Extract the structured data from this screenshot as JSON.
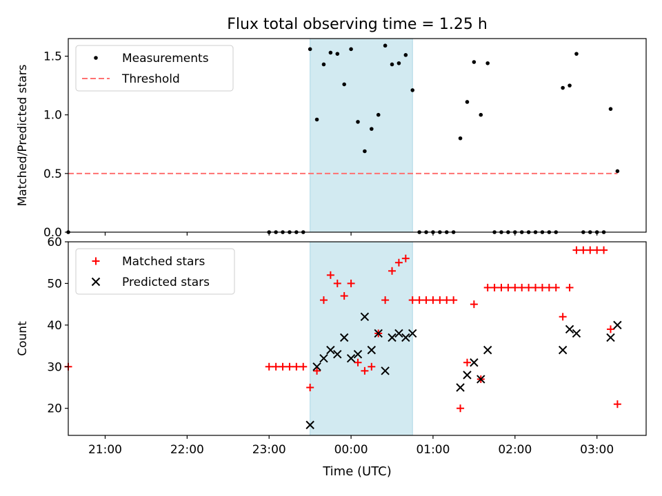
{
  "title": "Flux total observing time = 1.25 h",
  "xlabel": "Time (UTC)",
  "x_ticks": [
    "21:00",
    "22:00",
    "23:00",
    "00:00",
    "01:00",
    "02:00",
    "03:00"
  ],
  "colors": {
    "measurements": "#000000",
    "threshold": "#ff7070",
    "matched": "#ff0000",
    "predicted": "#000000",
    "span": "#add8e6"
  },
  "chart_data": [
    {
      "type": "scatter",
      "ylabel": "Matched/Predicted stars",
      "ylim": [
        0,
        1.65
      ],
      "y_ticks": [
        "0.0",
        "0.5",
        "1.0",
        "1.5"
      ],
      "xlim": [
        "20:33",
        "03:36"
      ],
      "highlight_span": [
        "23:30",
        "00:45"
      ],
      "legend_position": "upper left",
      "legend": [
        "Measurements",
        "Threshold"
      ],
      "threshold": {
        "value": 0.5,
        "from": "20:33",
        "to": "03:15"
      },
      "series": [
        {
          "name": "Measurements",
          "points": [
            [
              "20:33",
              0
            ],
            [
              "23:00",
              0
            ],
            [
              "23:05",
              0
            ],
            [
              "23:10",
              0
            ],
            [
              "23:15",
              0
            ],
            [
              "23:20",
              0
            ],
            [
              "23:25",
              0
            ],
            [
              "23:30",
              1.56
            ],
            [
              "23:35",
              0.96
            ],
            [
              "23:40",
              1.43
            ],
            [
              "23:45",
              1.53
            ],
            [
              "23:50",
              1.52
            ],
            [
              "23:55",
              1.26
            ],
            [
              "00:00",
              1.56
            ],
            [
              "00:05",
              0.94
            ],
            [
              "00:10",
              0.69
            ],
            [
              "00:15",
              0.88
            ],
            [
              "00:20",
              1.0
            ],
            [
              "00:25",
              1.59
            ],
            [
              "00:30",
              1.43
            ],
            [
              "00:35",
              1.44
            ],
            [
              "00:40",
              1.51
            ],
            [
              "00:45",
              1.21
            ],
            [
              "00:50",
              0
            ],
            [
              "00:55",
              0
            ],
            [
              "01:00",
              0
            ],
            [
              "01:05",
              0
            ],
            [
              "01:10",
              0
            ],
            [
              "01:15",
              0
            ],
            [
              "01:20",
              0.8
            ],
            [
              "01:25",
              1.11
            ],
            [
              "01:30",
              1.45
            ],
            [
              "01:35",
              1.0
            ],
            [
              "01:40",
              1.44
            ],
            [
              "01:45",
              0
            ],
            [
              "01:50",
              0
            ],
            [
              "01:55",
              0
            ],
            [
              "02:00",
              0
            ],
            [
              "02:05",
              0
            ],
            [
              "02:10",
              0
            ],
            [
              "02:15",
              0
            ],
            [
              "02:20",
              0
            ],
            [
              "02:25",
              0
            ],
            [
              "02:30",
              0
            ],
            [
              "02:35",
              1.23
            ],
            [
              "02:40",
              1.25
            ],
            [
              "02:45",
              1.52
            ],
            [
              "02:50",
              0
            ],
            [
              "02:55",
              0
            ],
            [
              "03:00",
              0
            ],
            [
              "03:05",
              0
            ],
            [
              "03:10",
              1.05
            ],
            [
              "03:15",
              0.52
            ]
          ]
        }
      ]
    },
    {
      "type": "scatter",
      "ylabel": "Count",
      "ylim": [
        13.5,
        60
      ],
      "y_ticks": [
        "20",
        "30",
        "40",
        "50",
        "60"
      ],
      "xlim": [
        "20:33",
        "03:36"
      ],
      "highlight_span": [
        "23:30",
        "00:45"
      ],
      "legend_position": "upper left",
      "legend": [
        "Matched stars",
        "Predicted stars"
      ],
      "series": [
        {
          "name": "Matched stars",
          "marker": "+",
          "points": [
            [
              "20:33",
              30
            ],
            [
              "23:00",
              30
            ],
            [
              "23:05",
              30
            ],
            [
              "23:10",
              30
            ],
            [
              "23:15",
              30
            ],
            [
              "23:20",
              30
            ],
            [
              "23:25",
              30
            ],
            [
              "23:30",
              25
            ],
            [
              "23:35",
              29
            ],
            [
              "23:40",
              46
            ],
            [
              "23:45",
              52
            ],
            [
              "23:50",
              50
            ],
            [
              "23:55",
              47
            ],
            [
              "00:00",
              50
            ],
            [
              "00:05",
              31
            ],
            [
              "00:10",
              29
            ],
            [
              "00:15",
              30
            ],
            [
              "00:20",
              38
            ],
            [
              "00:25",
              46
            ],
            [
              "00:30",
              53
            ],
            [
              "00:35",
              55
            ],
            [
              "00:40",
              56
            ],
            [
              "00:45",
              46
            ],
            [
              "00:50",
              46
            ],
            [
              "00:55",
              46
            ],
            [
              "01:00",
              46
            ],
            [
              "01:05",
              46
            ],
            [
              "01:10",
              46
            ],
            [
              "01:15",
              46
            ],
            [
              "01:20",
              20
            ],
            [
              "01:25",
              31
            ],
            [
              "01:30",
              45
            ],
            [
              "01:35",
              27
            ],
            [
              "01:40",
              49
            ],
            [
              "01:45",
              49
            ],
            [
              "01:50",
              49
            ],
            [
              "01:55",
              49
            ],
            [
              "02:00",
              49
            ],
            [
              "02:05",
              49
            ],
            [
              "02:10",
              49
            ],
            [
              "02:15",
              49
            ],
            [
              "02:20",
              49
            ],
            [
              "02:25",
              49
            ],
            [
              "02:30",
              49
            ],
            [
              "02:35",
              42
            ],
            [
              "02:40",
              49
            ],
            [
              "02:45",
              58
            ],
            [
              "02:50",
              58
            ],
            [
              "02:55",
              58
            ],
            [
              "03:00",
              58
            ],
            [
              "03:05",
              58
            ],
            [
              "03:10",
              39
            ],
            [
              "03:15",
              21
            ]
          ]
        },
        {
          "name": "Predicted stars",
          "marker": "x",
          "points": [
            [
              "23:30",
              16
            ],
            [
              "23:35",
              30
            ],
            [
              "23:40",
              32
            ],
            [
              "23:45",
              34
            ],
            [
              "23:50",
              33
            ],
            [
              "23:55",
              37
            ],
            [
              "00:00",
              32
            ],
            [
              "00:05",
              33
            ],
            [
              "00:10",
              42
            ],
            [
              "00:15",
              34
            ],
            [
              "00:20",
              38
            ],
            [
              "00:25",
              29
            ],
            [
              "00:30",
              37
            ],
            [
              "00:35",
              38
            ],
            [
              "00:40",
              37
            ],
            [
              "00:45",
              38
            ],
            [
              "01:20",
              25
            ],
            [
              "01:25",
              28
            ],
            [
              "01:30",
              31
            ],
            [
              "01:35",
              27
            ],
            [
              "01:40",
              34
            ],
            [
              "02:35",
              34
            ],
            [
              "02:40",
              39
            ],
            [
              "02:45",
              38
            ],
            [
              "03:10",
              37
            ],
            [
              "03:15",
              40
            ]
          ]
        }
      ]
    }
  ]
}
